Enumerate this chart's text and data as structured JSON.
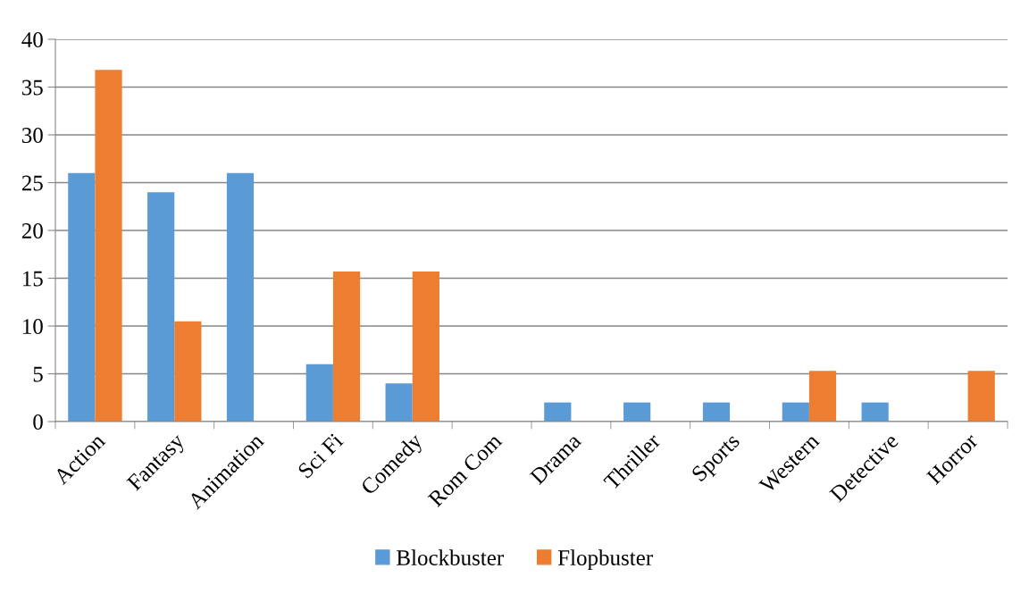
{
  "chart_data": {
    "type": "bar",
    "categories": [
      "Action",
      "Fantasy",
      "Animation",
      "Sci Fi",
      "Comedy",
      "Rom Com",
      "Drama",
      "Thriller",
      "Sports",
      "Western",
      "Detective",
      "Horror"
    ],
    "series": [
      {
        "name": "Blockbuster",
        "color": "#5b9bd5",
        "values": [
          26,
          24,
          26,
          6,
          4,
          0,
          2,
          2,
          2,
          2,
          2,
          0
        ]
      },
      {
        "name": "Flopbuster",
        "color": "#ed7d31",
        "values": [
          36.8,
          10.5,
          0,
          15.7,
          15.7,
          0,
          0,
          0,
          0,
          5.3,
          0,
          5.3
        ]
      }
    ],
    "ylim": [
      0,
      40
    ],
    "yticks": [
      0,
      5,
      10,
      15,
      20,
      25,
      30,
      35,
      40
    ],
    "grid": "y",
    "legend": "bottom"
  }
}
